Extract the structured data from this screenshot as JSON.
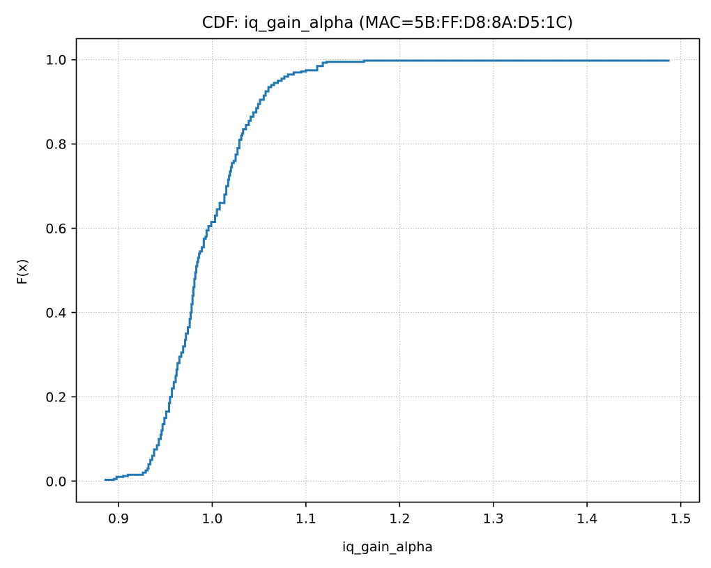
{
  "chart_data": {
    "type": "line",
    "subtype": "step-cdf",
    "title": "CDF: iq_gain_alpha (MAC=5B:FF:D8:8A:D5:1C)",
    "xlabel": "iq_gain_alpha",
    "ylabel": "F(x)",
    "xlim": [
      0.855,
      1.52
    ],
    "ylim": [
      -0.05,
      1.05
    ],
    "xticks": [
      0.9,
      1.0,
      1.1,
      1.2,
      1.3,
      1.4,
      1.5
    ],
    "xtick_labels": [
      "0.9",
      "1.0",
      "1.1",
      "1.2",
      "1.3",
      "1.4",
      "1.5"
    ],
    "yticks": [
      0.0,
      0.2,
      0.4,
      0.6,
      0.8,
      1.0
    ],
    "ytick_labels": [
      "0.0",
      "0.2",
      "0.4",
      "0.6",
      "0.8",
      "1.0"
    ],
    "grid": true,
    "grid_style": "dotted",
    "line_color": "#1f77b4",
    "series": [
      {
        "values": {
          "x": [
            0.885,
            0.895,
            0.898,
            0.905,
            0.91,
            0.926,
            0.929,
            0.931,
            0.932,
            0.934,
            0.936,
            0.938,
            0.941,
            0.943,
            0.945,
            0.946,
            0.947,
            0.949,
            0.951,
            0.954,
            0.955,
            0.957,
            0.959,
            0.961,
            0.962,
            0.963,
            0.965,
            0.967,
            0.969,
            0.971,
            0.972,
            0.974,
            0.976,
            0.977,
            0.978,
            0.979,
            0.98,
            0.981,
            0.982,
            0.983,
            0.984,
            0.985,
            0.986,
            0.987,
            0.989,
            0.991,
            0.993,
            0.994,
            0.996,
            0.999,
            1.003,
            1.005,
            1.008,
            1.013,
            1.015,
            1.017,
            1.018,
            1.019,
            1.02,
            1.021,
            1.023,
            1.025,
            1.027,
            1.029,
            1.031,
            1.032,
            1.033,
            1.036,
            1.039,
            1.041,
            1.044,
            1.047,
            1.049,
            1.051,
            1.055,
            1.057,
            1.06,
            1.063,
            1.066,
            1.07,
            1.074,
            1.077,
            1.081,
            1.087,
            1.095,
            1.1,
            1.112,
            1.118,
            1.122,
            1.162,
            1.487
          ],
          "y": [
            0.003,
            0.005,
            0.01,
            0.012,
            0.015,
            0.02,
            0.025,
            0.03,
            0.04,
            0.05,
            0.06,
            0.075,
            0.085,
            0.1,
            0.11,
            0.12,
            0.135,
            0.15,
            0.165,
            0.185,
            0.2,
            0.22,
            0.235,
            0.25,
            0.265,
            0.28,
            0.295,
            0.305,
            0.32,
            0.335,
            0.35,
            0.365,
            0.385,
            0.4,
            0.42,
            0.44,
            0.46,
            0.48,
            0.495,
            0.51,
            0.52,
            0.53,
            0.54,
            0.545,
            0.555,
            0.575,
            0.58,
            0.595,
            0.605,
            0.615,
            0.63,
            0.645,
            0.66,
            0.68,
            0.7,
            0.715,
            0.725,
            0.735,
            0.745,
            0.755,
            0.76,
            0.775,
            0.79,
            0.81,
            0.82,
            0.825,
            0.835,
            0.845,
            0.855,
            0.865,
            0.875,
            0.885,
            0.895,
            0.905,
            0.915,
            0.925,
            0.935,
            0.94,
            0.945,
            0.95,
            0.955,
            0.96,
            0.965,
            0.97,
            0.972,
            0.975,
            0.985,
            0.993,
            0.995,
            0.998,
            1.0
          ]
        }
      }
    ]
  }
}
